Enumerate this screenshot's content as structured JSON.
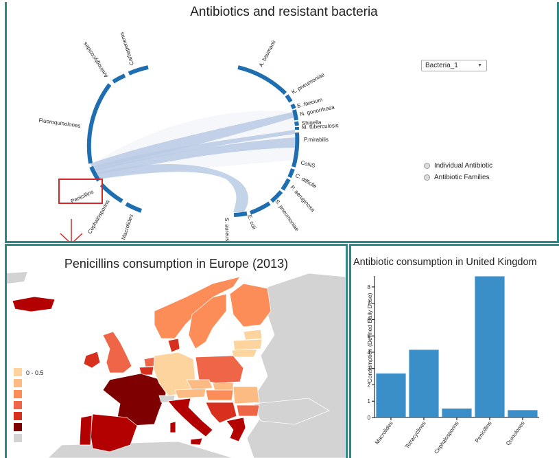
{
  "top": {
    "title": "Antibiotics and resistant bacteria",
    "dropdown": {
      "selected": "Bacteria_1"
    },
    "radios": [
      "Individual Antibiotic",
      "Antibiotic Families"
    ],
    "antibiotic_labels": [
      "Carbapenems",
      "Aminoglycosides",
      "Fluoroquinolones",
      "Penicillins",
      "Cephalosporins",
      "Macrolides"
    ],
    "bacteria_labels": [
      "A. baumanii",
      "K. pneumoniae",
      "E. faecium",
      "N. gonorrhoea",
      "Shigella",
      "M. tuberculosis",
      "P.mirabilis",
      "CoNS",
      "C. difficile",
      "P. aeruginosa",
      "S. pneumoniae",
      "E. coli",
      "S. aureus"
    ],
    "highlight_color": "#d62728",
    "arc_color": "#1f6fb0",
    "ribbon_color": "#b0c4de"
  },
  "map": {
    "title": "Penicillins consumption in Europe (2013)",
    "legend": [
      "0 - 0.5",
      "",
      "",
      "",
      "",
      "",
      ""
    ],
    "legend_colors": [
      "#fdd49e",
      "#fdbb84",
      "#fc8d59",
      "#ef6548",
      "#d7301f",
      "#b30000",
      "#7f0000",
      "#d3d3d3"
    ]
  },
  "bar": {
    "title": "Antibiotic consumption in United Kingdom",
    "bar_color": "#3a8fc9"
  },
  "chart_data": {
    "type": "bar",
    "title": "Antibiotic consumption in United Kingdom",
    "xlabel": "",
    "ylabel": "Consumption (Defined Daily Dose)",
    "categories": [
      "Macrolides",
      "Tetracyclines",
      "Cephalosporins",
      "Penicillins",
      "Quinolones"
    ],
    "values": [
      2.7,
      4.15,
      0.55,
      8.65,
      0.45
    ],
    "ylim": [
      0,
      8.5
    ],
    "yticks": [
      0,
      1,
      2,
      3,
      4,
      5,
      6,
      7,
      8
    ]
  }
}
